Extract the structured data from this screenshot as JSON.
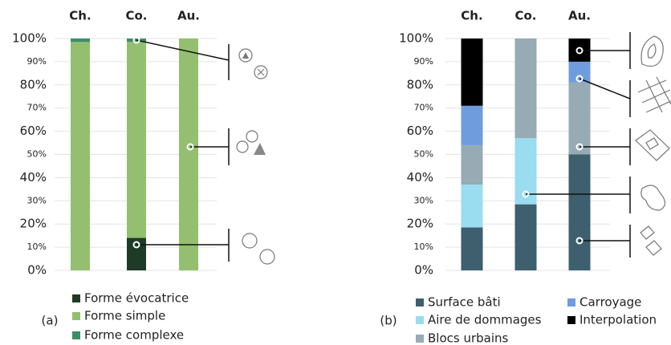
{
  "chart_data": [
    {
      "type": "stacked_bar",
      "panel_label": "(a)",
      "categories": [
        "Ch.",
        "Co.",
        "Au."
      ],
      "series": [
        {
          "name": "Forme évocatrice",
          "color": "#1e3b28",
          "values": [
            0,
            14,
            0
          ]
        },
        {
          "name": "Forme simple",
          "color": "#94bf70",
          "values": [
            98.5,
            84.5,
            100
          ]
        },
        {
          "name": "Forme complexe",
          "color": "#3d8d68",
          "values": [
            1.5,
            1.5,
            0
          ]
        }
      ],
      "ylim": [
        0,
        100
      ],
      "yticks": [
        {
          "value": 0,
          "label": "0%"
        },
        {
          "value": 10,
          "label": "10%"
        },
        {
          "value": 20,
          "label": "20%"
        },
        {
          "value": 30,
          "label": "30%"
        },
        {
          "value": 40,
          "label": "40%"
        },
        {
          "value": 50,
          "label": "50%"
        },
        {
          "value": 60,
          "label": "60%"
        },
        {
          "value": 70,
          "label": "70%"
        },
        {
          "value": 80,
          "label": "80%"
        },
        {
          "value": 90,
          "label": "90%"
        },
        {
          "value": 100,
          "label": "100%"
        }
      ]
    },
    {
      "type": "stacked_bar",
      "panel_label": "(b)",
      "categories": [
        "Ch.",
        "Co.",
        "Au."
      ],
      "series": [
        {
          "name": "Surface bâti",
          "color": "#3d5f6e",
          "values": [
            18.5,
            28.5,
            50
          ]
        },
        {
          "name": "Aire de dommages",
          "color": "#9adcf0",
          "values": [
            18.5,
            28.5,
            0
          ]
        },
        {
          "name": "Blocs urbains",
          "color": "#96abb4",
          "values": [
            17,
            43,
            31
          ]
        },
        {
          "name": "Carroyage",
          "color": "#6f9cdc",
          "values": [
            17,
            0,
            9
          ]
        },
        {
          "name": "Interpolation",
          "color": "#000000",
          "values": [
            29,
            0,
            10
          ]
        }
      ],
      "ylim": [
        0,
        100
      ],
      "yticks": [
        {
          "value": 0,
          "label": "0%"
        },
        {
          "value": 10,
          "label": "10%"
        },
        {
          "value": 20,
          "label": "20%"
        },
        {
          "value": 30,
          "label": "30%"
        },
        {
          "value": 40,
          "label": "40%"
        },
        {
          "value": 50,
          "label": "50%"
        },
        {
          "value": 60,
          "label": "60%"
        },
        {
          "value": 70,
          "label": "70%"
        },
        {
          "value": 80,
          "label": "80%"
        },
        {
          "value": 90,
          "label": "90%"
        },
        {
          "value": 100,
          "label": "100%"
        }
      ]
    }
  ]
}
